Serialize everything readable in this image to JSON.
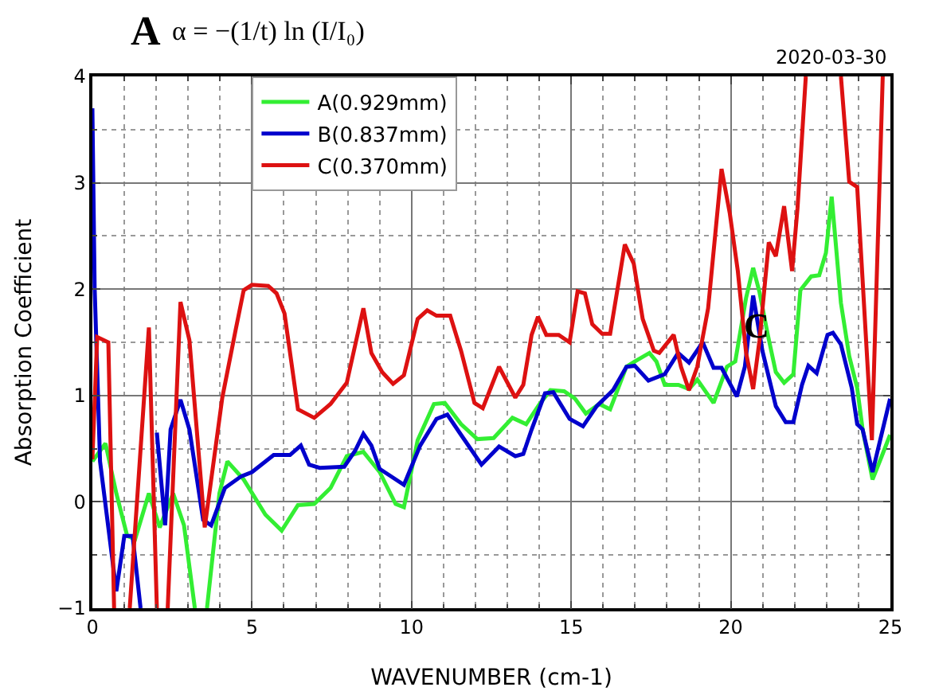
{
  "chart_data": {
    "type": "line",
    "xlabel": "WAVENUMBER (cm-1)",
    "ylabel": "Absorption Coefficient",
    "annotations": [
      "A",
      "α = −(1/t) ln (I/I₀)",
      "2020-03-30",
      {
        "text": "C",
        "x": 20.8,
        "y": 1.65
      }
    ],
    "xlim": [
      0,
      25
    ],
    "xticks": [
      0,
      5,
      10,
      15,
      20,
      25
    ],
    "ylim": [
      -1,
      4
    ],
    "yticks": [
      -1,
      0,
      1,
      2,
      3,
      4
    ],
    "grid": true,
    "legend": "top left",
    "line_style": "solid",
    "marker": "none",
    "series": [
      {
        "name": "A(0.929mm)",
        "color": "#33ee33",
        "x": [
          0,
          0.41,
          0.75,
          1.09,
          1.34,
          1.77,
          2.11,
          2.53,
          2.87,
          3.21,
          3.4,
          3.59,
          3.98,
          4.23,
          4.74,
          5.42,
          5.93,
          6.44,
          6.95,
          7.46,
          7.97,
          8.49,
          9.0,
          9.5,
          9.76,
          10.19,
          10.7,
          11.04,
          11.55,
          12.06,
          12.57,
          13.16,
          13.59,
          14.01,
          14.35,
          14.78,
          15.12,
          15.46,
          15.88,
          16.22,
          16.73,
          16.99,
          17.45,
          17.67,
          17.93,
          18.36,
          18.69,
          18.95,
          19.46,
          19.88,
          20.14,
          20.48,
          20.7,
          20.9,
          21.16,
          21.41,
          21.67,
          21.96,
          22.18,
          22.52,
          22.77,
          22.98,
          23.16,
          23.45,
          23.71,
          23.96,
          24.13,
          24.44,
          24.73,
          24.99
        ],
        "values": [
          0.38,
          0.55,
          0.08,
          -0.32,
          -0.35,
          0.08,
          -0.24,
          0.08,
          -0.22,
          -1,
          null,
          -1,
          0.08,
          0.38,
          0.21,
          -0.12,
          -0.27,
          -0.03,
          -0.02,
          0.13,
          0.43,
          0.47,
          0.28,
          -0.02,
          -0.05,
          0.58,
          0.92,
          0.93,
          0.73,
          0.59,
          0.6,
          0.79,
          0.73,
          0.92,
          1.05,
          1.04,
          0.97,
          0.83,
          0.92,
          0.87,
          1.27,
          1.32,
          1.4,
          1.32,
          1.1,
          1.1,
          1.06,
          1.15,
          0.93,
          1.27,
          1.32,
          1.92,
          2.2,
          1.97,
          1.57,
          1.22,
          1.12,
          1.2,
          1.99,
          2.12,
          2.13,
          2.34,
          2.87,
          1.87,
          1.37,
          1.07,
          0.68,
          0.21,
          0.43,
          0.63
        ]
      },
      {
        "name": "B(0.837mm)",
        "color": "#0000cc",
        "x": [
          0,
          0.07,
          0.24,
          0.75,
          1.0,
          1.26,
          1.51,
          1.75,
          2.02,
          2.28,
          2.45,
          2.76,
          3.04,
          3.47,
          3.72,
          4.15,
          4.66,
          5.0,
          5.68,
          6.19,
          6.53,
          6.79,
          7.12,
          7.89,
          8.23,
          8.49,
          8.74,
          9.0,
          9.76,
          10.27,
          10.78,
          11.12,
          11.55,
          12.19,
          12.74,
          13.25,
          13.5,
          13.76,
          14.18,
          14.44,
          14.95,
          15.37,
          15.8,
          16.31,
          16.73,
          16.99,
          17.42,
          17.93,
          18.35,
          18.69,
          19.12,
          19.46,
          19.71,
          20.19,
          20.44,
          20.7,
          20.99,
          21.41,
          21.72,
          21.96,
          22.23,
          22.43,
          22.69,
          23.03,
          23.2,
          23.45,
          23.79,
          23.96,
          24.13,
          24.44,
          24.99
        ],
        "values": [
          3.7,
          2.02,
          0.38,
          -0.84,
          -0.32,
          -0.32,
          -1,
          null,
          0.65,
          -0.22,
          0.68,
          0.96,
          0.68,
          -0.17,
          -0.22,
          0.13,
          0.24,
          0.28,
          0.44,
          0.44,
          0.53,
          0.35,
          0.32,
          0.33,
          0.48,
          0.64,
          0.53,
          0.31,
          0.16,
          0.53,
          0.78,
          0.82,
          0.63,
          0.35,
          0.52,
          0.43,
          0.45,
          0.68,
          1.02,
          1.03,
          0.78,
          0.71,
          0.9,
          1.05,
          1.27,
          1.28,
          1.14,
          1.2,
          1.4,
          1.31,
          1.5,
          1.26,
          1.26,
          0.99,
          1.27,
          1.94,
          1.42,
          0.9,
          0.75,
          0.75,
          1.1,
          1.28,
          1.21,
          1.57,
          1.59,
          1.48,
          1.07,
          0.73,
          0.68,
          0.28,
          0.97
        ]
      },
      {
        "name": "C(0.370mm)",
        "color": "#dd1111",
        "x": [
          0,
          0.15,
          0.5,
          0.68,
          0.9,
          1.17,
          1.77,
          2.02,
          2.2,
          2.36,
          2.76,
          3.04,
          3.52,
          4.07,
          4.49,
          4.74,
          5.0,
          5.51,
          5.77,
          6.02,
          6.44,
          6.95,
          7.46,
          7.97,
          8.49,
          8.74,
          9.08,
          9.42,
          9.76,
          10.19,
          10.49,
          10.78,
          11.21,
          11.55,
          11.97,
          12.23,
          12.74,
          13.25,
          13.5,
          13.76,
          13.96,
          14.22,
          14.61,
          14.95,
          15.2,
          15.43,
          15.66,
          15.97,
          16.22,
          16.68,
          16.96,
          17.24,
          17.59,
          17.76,
          18.21,
          18.44,
          18.69,
          18.95,
          19.29,
          19.71,
          19.97,
          20.22,
          20.48,
          20.7,
          20.9,
          21.19,
          21.41,
          21.67,
          21.92,
          22.09,
          22.35,
          22.9,
          23.45,
          23.71,
          23.96,
          24.42,
          24.76
        ],
        "values": [
          0.4,
          1.55,
          1.5,
          -1,
          null,
          -1,
          1.64,
          -1,
          null,
          -1,
          1.88,
          1.52,
          -0.24,
          0.98,
          1.62,
          1.99,
          2.04,
          2.03,
          1.96,
          1.77,
          0.87,
          0.79,
          0.92,
          1.12,
          1.82,
          1.4,
          1.22,
          1.11,
          1.19,
          1.72,
          1.8,
          1.75,
          1.75,
          1.42,
          0.93,
          0.88,
          1.27,
          0.98,
          1.1,
          1.57,
          1.74,
          1.57,
          1.57,
          1.5,
          1.98,
          1.96,
          1.67,
          1.58,
          1.58,
          2.42,
          2.24,
          1.72,
          1.42,
          1.4,
          1.57,
          1.27,
          1.05,
          1.27,
          1.82,
          3.13,
          2.71,
          2.17,
          1.4,
          1.06,
          1.52,
          2.44,
          2.31,
          2.78,
          2.17,
          2.76,
          4,
          null,
          4,
          3.01,
          2.96,
          0.58,
          4
        ]
      }
    ]
  }
}
